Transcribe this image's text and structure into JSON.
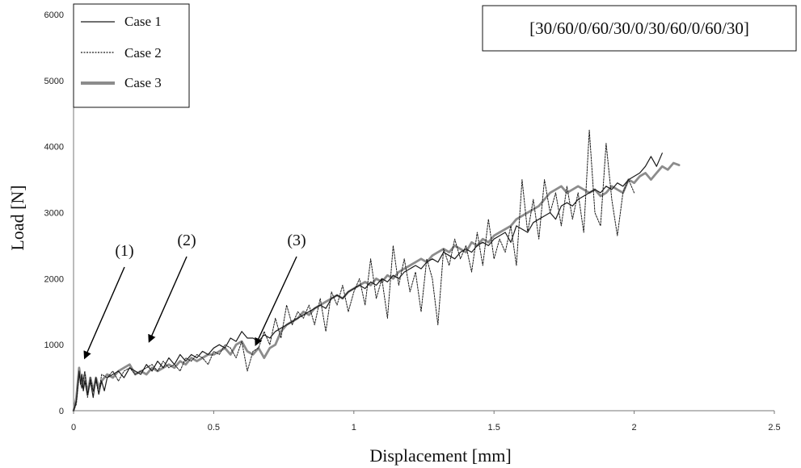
{
  "chart_data": {
    "type": "line",
    "title": "",
    "xlabel": "Displacement [mm]",
    "ylabel": "Load [N]",
    "xlim": [
      0,
      2.5
    ],
    "ylim": [
      0,
      6000
    ],
    "x_ticks": [
      0,
      0.5,
      1,
      1.5,
      2,
      2.5
    ],
    "x_tick_labels": [
      "0",
      "0.5",
      "1",
      "1.5",
      "2",
      "2.5"
    ],
    "y_ticks": [
      0,
      1000,
      2000,
      3000,
      4000,
      5000,
      6000
    ],
    "y_tick_labels": [
      "0",
      "1000",
      "2000",
      "3000",
      "4000",
      "5000",
      "6000"
    ],
    "grid": false,
    "legend_position": "top-left",
    "layup_label": "[30/60/0/60/30/0/30/60/0/60/30]",
    "annotations": [
      {
        "label": "(1)",
        "x": 0.04,
        "y": 800
      },
      {
        "label": "(2)",
        "x": 0.27,
        "y": 1050
      },
      {
        "label": "(3)",
        "x": 0.65,
        "y": 1000
      }
    ],
    "series": [
      {
        "name": "Case 1",
        "style": "solid-thin",
        "color": "#1a1a1a",
        "x": [
          0,
          0.01,
          0.02,
          0.025,
          0.03,
          0.035,
          0.04,
          0.05,
          0.06,
          0.07,
          0.08,
          0.09,
          0.1,
          0.11,
          0.12,
          0.14,
          0.16,
          0.18,
          0.2,
          0.22,
          0.24,
          0.26,
          0.28,
          0.3,
          0.32,
          0.34,
          0.36,
          0.38,
          0.4,
          0.42,
          0.44,
          0.46,
          0.48,
          0.5,
          0.52,
          0.54,
          0.56,
          0.58,
          0.6,
          0.62,
          0.64,
          0.66,
          0.68,
          0.7,
          0.72,
          0.74,
          0.76,
          0.78,
          0.8,
          0.82,
          0.84,
          0.86,
          0.88,
          0.9,
          0.92,
          0.94,
          0.96,
          0.98,
          1.0,
          1.02,
          1.04,
          1.06,
          1.08,
          1.1,
          1.12,
          1.14,
          1.16,
          1.18,
          1.2,
          1.22,
          1.24,
          1.26,
          1.28,
          1.3,
          1.32,
          1.34,
          1.36,
          1.38,
          1.4,
          1.42,
          1.44,
          1.46,
          1.48,
          1.5,
          1.52,
          1.54,
          1.56,
          1.58,
          1.6,
          1.62,
          1.64,
          1.66,
          1.68,
          1.7,
          1.72,
          1.74,
          1.76,
          1.78,
          1.8,
          1.82,
          1.84,
          1.86,
          1.88,
          1.9,
          1.92,
          1.94,
          1.96,
          1.98,
          2.0,
          2.02,
          2.04,
          2.06,
          2.08,
          2.1
        ],
        "y": [
          0,
          150,
          600,
          400,
          550,
          300,
          450,
          250,
          450,
          200,
          500,
          250,
          450,
          300,
          500,
          550,
          600,
          500,
          650,
          600,
          550,
          700,
          600,
          750,
          650,
          800,
          700,
          850,
          750,
          850,
          800,
          900,
          850,
          950,
          1000,
          950,
          1100,
          1050,
          1200,
          1100,
          1100,
          1050,
          1150,
          1100,
          1200,
          1250,
          1300,
          1350,
          1400,
          1450,
          1500,
          1550,
          1600,
          1550,
          1700,
          1750,
          1700,
          1800,
          1850,
          1900,
          1850,
          1950,
          1900,
          2000,
          1950,
          2050,
          2000,
          2100,
          2150,
          2200,
          2150,
          2250,
          2300,
          2250,
          2400,
          2350,
          2300,
          2400,
          2450,
          2400,
          2500,
          2550,
          2500,
          2600,
          2650,
          2700,
          2550,
          2800,
          2750,
          2700,
          2850,
          2900,
          2950,
          3000,
          2900,
          3100,
          3150,
          3100,
          3200,
          3250,
          3300,
          3350,
          3300,
          3400,
          3350,
          3450,
          3400,
          3500,
          3550,
          3600,
          3700,
          3850,
          3700,
          3900
        ]
      },
      {
        "name": "Case 2",
        "style": "dashed-thin",
        "color": "#1a1a1a",
        "x": [
          0,
          0.01,
          0.02,
          0.03,
          0.04,
          0.05,
          0.06,
          0.07,
          0.08,
          0.09,
          0.1,
          0.12,
          0.14,
          0.16,
          0.18,
          0.2,
          0.22,
          0.24,
          0.26,
          0.28,
          0.3,
          0.32,
          0.34,
          0.36,
          0.38,
          0.4,
          0.42,
          0.44,
          0.46,
          0.48,
          0.5,
          0.52,
          0.54,
          0.56,
          0.58,
          0.6,
          0.62,
          0.64,
          0.66,
          0.68,
          0.7,
          0.72,
          0.74,
          0.76,
          0.78,
          0.8,
          0.82,
          0.84,
          0.86,
          0.88,
          0.9,
          0.92,
          0.94,
          0.96,
          0.98,
          1.0,
          1.02,
          1.04,
          1.06,
          1.08,
          1.1,
          1.12,
          1.14,
          1.16,
          1.18,
          1.2,
          1.22,
          1.24,
          1.26,
          1.28,
          1.3,
          1.32,
          1.34,
          1.36,
          1.38,
          1.4,
          1.42,
          1.44,
          1.46,
          1.48,
          1.5,
          1.52,
          1.54,
          1.56,
          1.58,
          1.6,
          1.62,
          1.64,
          1.66,
          1.68,
          1.7,
          1.72,
          1.74,
          1.76,
          1.78,
          1.8,
          1.82,
          1.84,
          1.86,
          1.88,
          1.9,
          1.92,
          1.94,
          1.96,
          1.98,
          2.0
        ],
        "y": [
          0,
          100,
          550,
          350,
          600,
          200,
          500,
          300,
          450,
          250,
          550,
          500,
          600,
          450,
          600,
          650,
          550,
          600,
          650,
          700,
          600,
          750,
          650,
          700,
          600,
          800,
          750,
          850,
          800,
          700,
          900,
          850,
          1000,
          950,
          800,
          1050,
          600,
          900,
          950,
          1200,
          1000,
          1400,
          1100,
          1600,
          1300,
          1500,
          1400,
          1600,
          1300,
          1700,
          1200,
          1800,
          1600,
          1900,
          1500,
          1800,
          2000,
          1600,
          2300,
          1700,
          2000,
          1400,
          2500,
          1900,
          2300,
          1800,
          2100,
          1500,
          2300,
          2000,
          1300,
          2450,
          2200,
          2600,
          2300,
          2500,
          2100,
          2700,
          2200,
          2900,
          2300,
          2600,
          2400,
          2800,
          2200,
          3500,
          2700,
          3200,
          2600,
          3500,
          3000,
          3300,
          2800,
          3400,
          2900,
          3300,
          2700,
          4250,
          3000,
          2800,
          4050,
          3200,
          2650,
          3300,
          3500,
          3300
        ]
      },
      {
        "name": "Case 3",
        "style": "solid-thick",
        "color": "#8c8c8c",
        "x": [
          0,
          0.01,
          0.02,
          0.03,
          0.04,
          0.05,
          0.06,
          0.07,
          0.08,
          0.09,
          0.1,
          0.12,
          0.14,
          0.16,
          0.18,
          0.2,
          0.22,
          0.24,
          0.26,
          0.28,
          0.3,
          0.32,
          0.34,
          0.36,
          0.38,
          0.4,
          0.42,
          0.44,
          0.46,
          0.48,
          0.5,
          0.52,
          0.54,
          0.56,
          0.58,
          0.6,
          0.62,
          0.64,
          0.66,
          0.68,
          0.7,
          0.72,
          0.74,
          0.76,
          0.78,
          0.8,
          0.82,
          0.84,
          0.86,
          0.88,
          0.9,
          0.92,
          0.94,
          0.96,
          0.98,
          1.0,
          1.02,
          1.04,
          1.06,
          1.08,
          1.1,
          1.12,
          1.14,
          1.16,
          1.18,
          1.2,
          1.22,
          1.24,
          1.26,
          1.28,
          1.3,
          1.32,
          1.34,
          1.36,
          1.38,
          1.4,
          1.42,
          1.44,
          1.46,
          1.48,
          1.5,
          1.52,
          1.54,
          1.56,
          1.58,
          1.6,
          1.62,
          1.64,
          1.66,
          1.68,
          1.7,
          1.72,
          1.74,
          1.76,
          1.78,
          1.8,
          1.82,
          1.84,
          1.86,
          1.88,
          1.9,
          1.92,
          1.94,
          1.96,
          1.98,
          2.0,
          2.02,
          2.04,
          2.06,
          2.08,
          2.1,
          2.12,
          2.14,
          2.16
        ],
        "y": [
          0,
          200,
          650,
          350,
          550,
          250,
          500,
          300,
          500,
          350,
          450,
          550,
          500,
          600,
          650,
          700,
          550,
          600,
          550,
          650,
          600,
          650,
          700,
          650,
          750,
          700,
          800,
          750,
          800,
          850,
          850,
          900,
          950,
          850,
          1000,
          1050,
          900,
          850,
          950,
          800,
          950,
          1000,
          1200,
          1300,
          1350,
          1400,
          1500,
          1450,
          1550,
          1600,
          1650,
          1700,
          1750,
          1700,
          1800,
          1850,
          1900,
          1950,
          1900,
          2000,
          1950,
          2050,
          2000,
          2100,
          2150,
          2200,
          2250,
          2300,
          2250,
          2350,
          2400,
          2450,
          2400,
          2500,
          2450,
          2400,
          2550,
          2500,
          2600,
          2550,
          2650,
          2700,
          2750,
          2800,
          2900,
          2950,
          3000,
          3050,
          3100,
          3200,
          3300,
          3350,
          3400,
          3300,
          3350,
          3400,
          3350,
          3300,
          3350,
          3250,
          3300,
          3400,
          3350,
          3300,
          3500,
          3450,
          3550,
          3600,
          3500,
          3600,
          3700,
          3650,
          3750,
          3720
        ]
      }
    ]
  }
}
